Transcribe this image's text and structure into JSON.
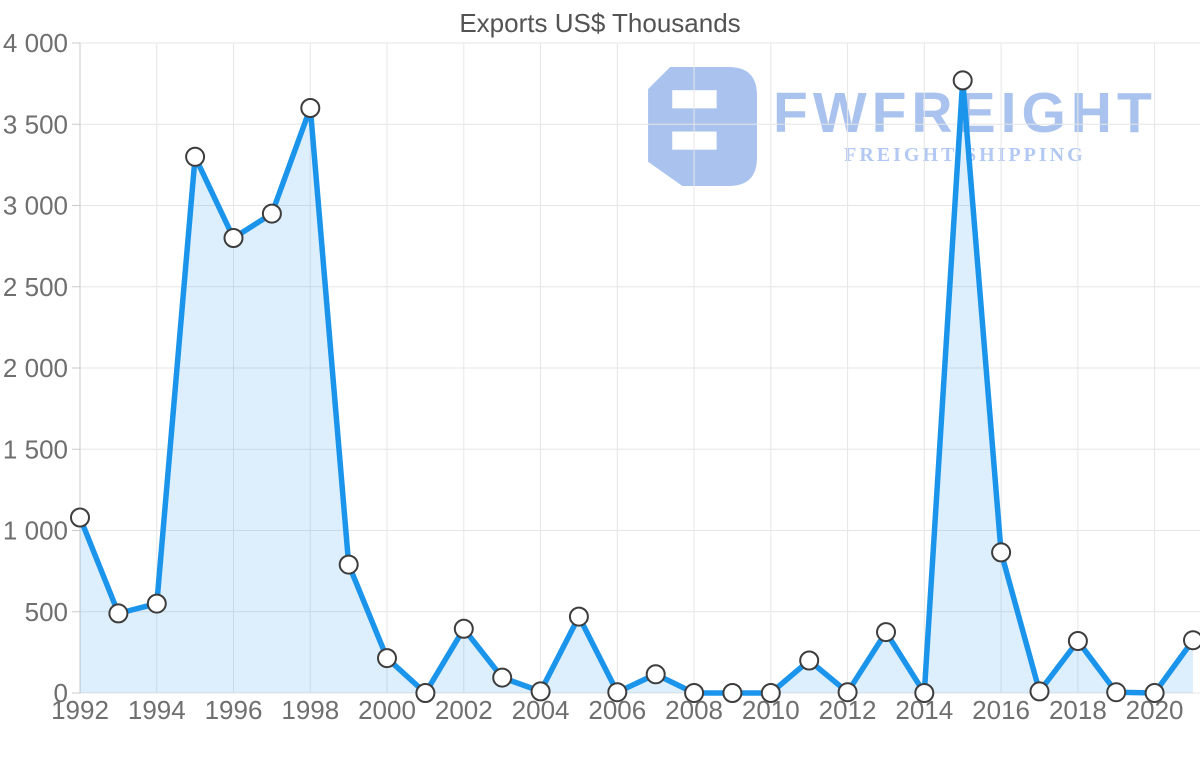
{
  "watermark": {
    "brand": "FWFREIGHT",
    "tagline": "FREIGHT SHIPPING",
    "logo_icon": "stylized-f-bracket",
    "brand_color": "#a9c3ee",
    "tagline_color": "#b3c9f3"
  },
  "chart_data": {
    "type": "area",
    "title": "Exports US$ Thousands",
    "xlabel": "",
    "ylabel": "",
    "x": [
      1992,
      1993,
      1994,
      1995,
      1996,
      1997,
      1998,
      1999,
      2000,
      2001,
      2002,
      2003,
      2004,
      2005,
      2006,
      2007,
      2008,
      2009,
      2010,
      2011,
      2012,
      2013,
      2014,
      2015,
      2016,
      2017,
      2018,
      2019,
      2020,
      2021
    ],
    "values": [
      1080,
      490,
      550,
      3300,
      2800,
      2950,
      3600,
      790,
      215,
      0,
      395,
      95,
      10,
      470,
      5,
      115,
      0,
      0,
      0,
      200,
      5,
      375,
      0,
      3770,
      865,
      10,
      320,
      5,
      0,
      325
    ],
    "ylim": [
      0,
      4000
    ],
    "y_ticks": [
      0,
      500,
      1000,
      1500,
      2000,
      2500,
      3000,
      3500,
      4000
    ],
    "y_tick_labels": [
      "0",
      "500",
      "1 000",
      "1 500",
      "2 000",
      "2 500",
      "3 000",
      "3 500",
      "4 000"
    ],
    "x_tick_years": [
      1992,
      1994,
      1996,
      1998,
      2000,
      2002,
      2004,
      2006,
      2008,
      2010,
      2012,
      2014,
      2016,
      2018,
      2020
    ],
    "grid": true,
    "legend": "none",
    "marker": "circle-white",
    "colors": {
      "line": "#1b95ec",
      "fill": "rgba(30,150,236,0.15)",
      "marker_fill": "#ffffff",
      "marker_stroke": "#3d3d3d",
      "grid": "#e6e6e6",
      "axis": "#c9c9c9",
      "tick_label": "#6f6f6f",
      "title": "#535353"
    }
  }
}
